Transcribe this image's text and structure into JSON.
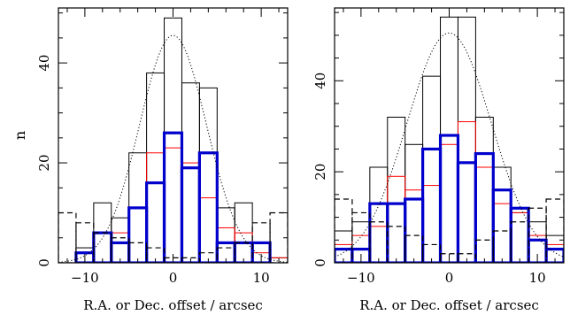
{
  "chart_data": [
    {
      "type": "histogram",
      "xlabel": "R.A. or Dec. offset / arcsec",
      "ylabel": "n",
      "xlim": [
        -13,
        13
      ],
      "ylim": [
        0,
        51
      ],
      "xticks": [
        -10,
        0,
        10
      ],
      "yticks": [
        0,
        20,
        40
      ],
      "bin_edges": [
        -13,
        -11,
        -9,
        -7,
        -5,
        -3,
        -1,
        1,
        3,
        5,
        7,
        9,
        11,
        13
      ],
      "grid": false,
      "legend": "none",
      "series": [
        {
          "style": "thin-black",
          "color": "#000000",
          "values": [
            0,
            3,
            12,
            9,
            22,
            38,
            49,
            36,
            35,
            11,
            12,
            4,
            1
          ]
        },
        {
          "style": "red",
          "color": "#ff0000",
          "values": [
            0,
            2,
            6,
            6,
            11,
            22,
            23,
            20,
            13,
            7,
            6,
            2,
            1
          ]
        },
        {
          "style": "thick-blue",
          "color": "#0000cc",
          "values": [
            0,
            2,
            6,
            4,
            11,
            16,
            26,
            19,
            22,
            4,
            4,
            4,
            0
          ]
        },
        {
          "style": "dashed-black",
          "color": "#000000",
          "values": [
            10,
            8,
            6,
            5,
            4,
            3,
            1,
            1,
            2,
            3,
            4,
            8,
            10
          ]
        }
      ],
      "fit": {
        "style": "dotted-gaussian",
        "amplitude": 45.5,
        "mean": 0.0,
        "sigma": 3.8
      }
    },
    {
      "type": "histogram",
      "xlabel": "R.A. or Dec. offset / arcsec",
      "ylabel": "",
      "xlim": [
        -13,
        13
      ],
      "ylim": [
        0,
        56
      ],
      "xticks": [
        -10,
        0,
        10
      ],
      "yticks": [
        0,
        20,
        40
      ],
      "bin_edges": [
        -13,
        -11,
        -9,
        -7,
        -5,
        -3,
        -1,
        1,
        3,
        5,
        7,
        9,
        11,
        13
      ],
      "grid": false,
      "legend": "none",
      "series": [
        {
          "style": "thin-black",
          "color": "#000000",
          "values": [
            7,
            9,
            21,
            32,
            26,
            41,
            54,
            54,
            32,
            21,
            11,
            9,
            6
          ]
        },
        {
          "style": "red",
          "color": "#ff0000",
          "values": [
            4,
            6,
            8,
            19,
            16,
            17,
            26,
            31,
            21,
            13,
            11,
            6,
            4
          ]
        },
        {
          "style": "thick-blue",
          "color": "#0000cc",
          "values": [
            3,
            3,
            13,
            13,
            14,
            25,
            28,
            22,
            24,
            16,
            12,
            5,
            3
          ]
        },
        {
          "style": "dashed-black",
          "color": "#000000",
          "values": [
            14,
            11,
            9,
            8,
            6,
            4,
            2,
            2,
            5,
            7,
            9,
            12,
            14
          ]
        }
      ],
      "fit": {
        "style": "dotted-gaussian",
        "amplitude": 50.5,
        "mean": 0.0,
        "sigma": 4.8
      }
    }
  ]
}
